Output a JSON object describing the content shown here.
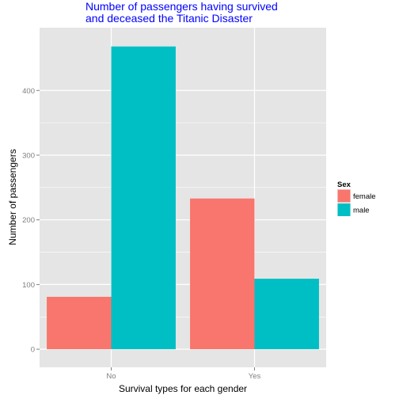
{
  "chart_data": {
    "type": "bar",
    "title_lines": [
      "Number of passengers having survived",
      "and deceased the Titanic Disaster"
    ],
    "xlabel": "Survival types for each gender",
    "ylabel": "Number of passengers",
    "categories": [
      "No",
      "Yes"
    ],
    "series": [
      {
        "name": "female",
        "values": [
          81,
          233
        ],
        "color": "#f8766d"
      },
      {
        "name": "male",
        "values": [
          468,
          109
        ],
        "color": "#00bfc4"
      }
    ],
    "ylim": [
      -28,
      497
    ],
    "yticks": [
      0,
      100,
      200,
      300,
      400
    ],
    "grid": true,
    "legend": {
      "title": "Sex",
      "position": "right"
    },
    "background_color": "#e5e5e5",
    "grid_color": "#ffffff"
  }
}
